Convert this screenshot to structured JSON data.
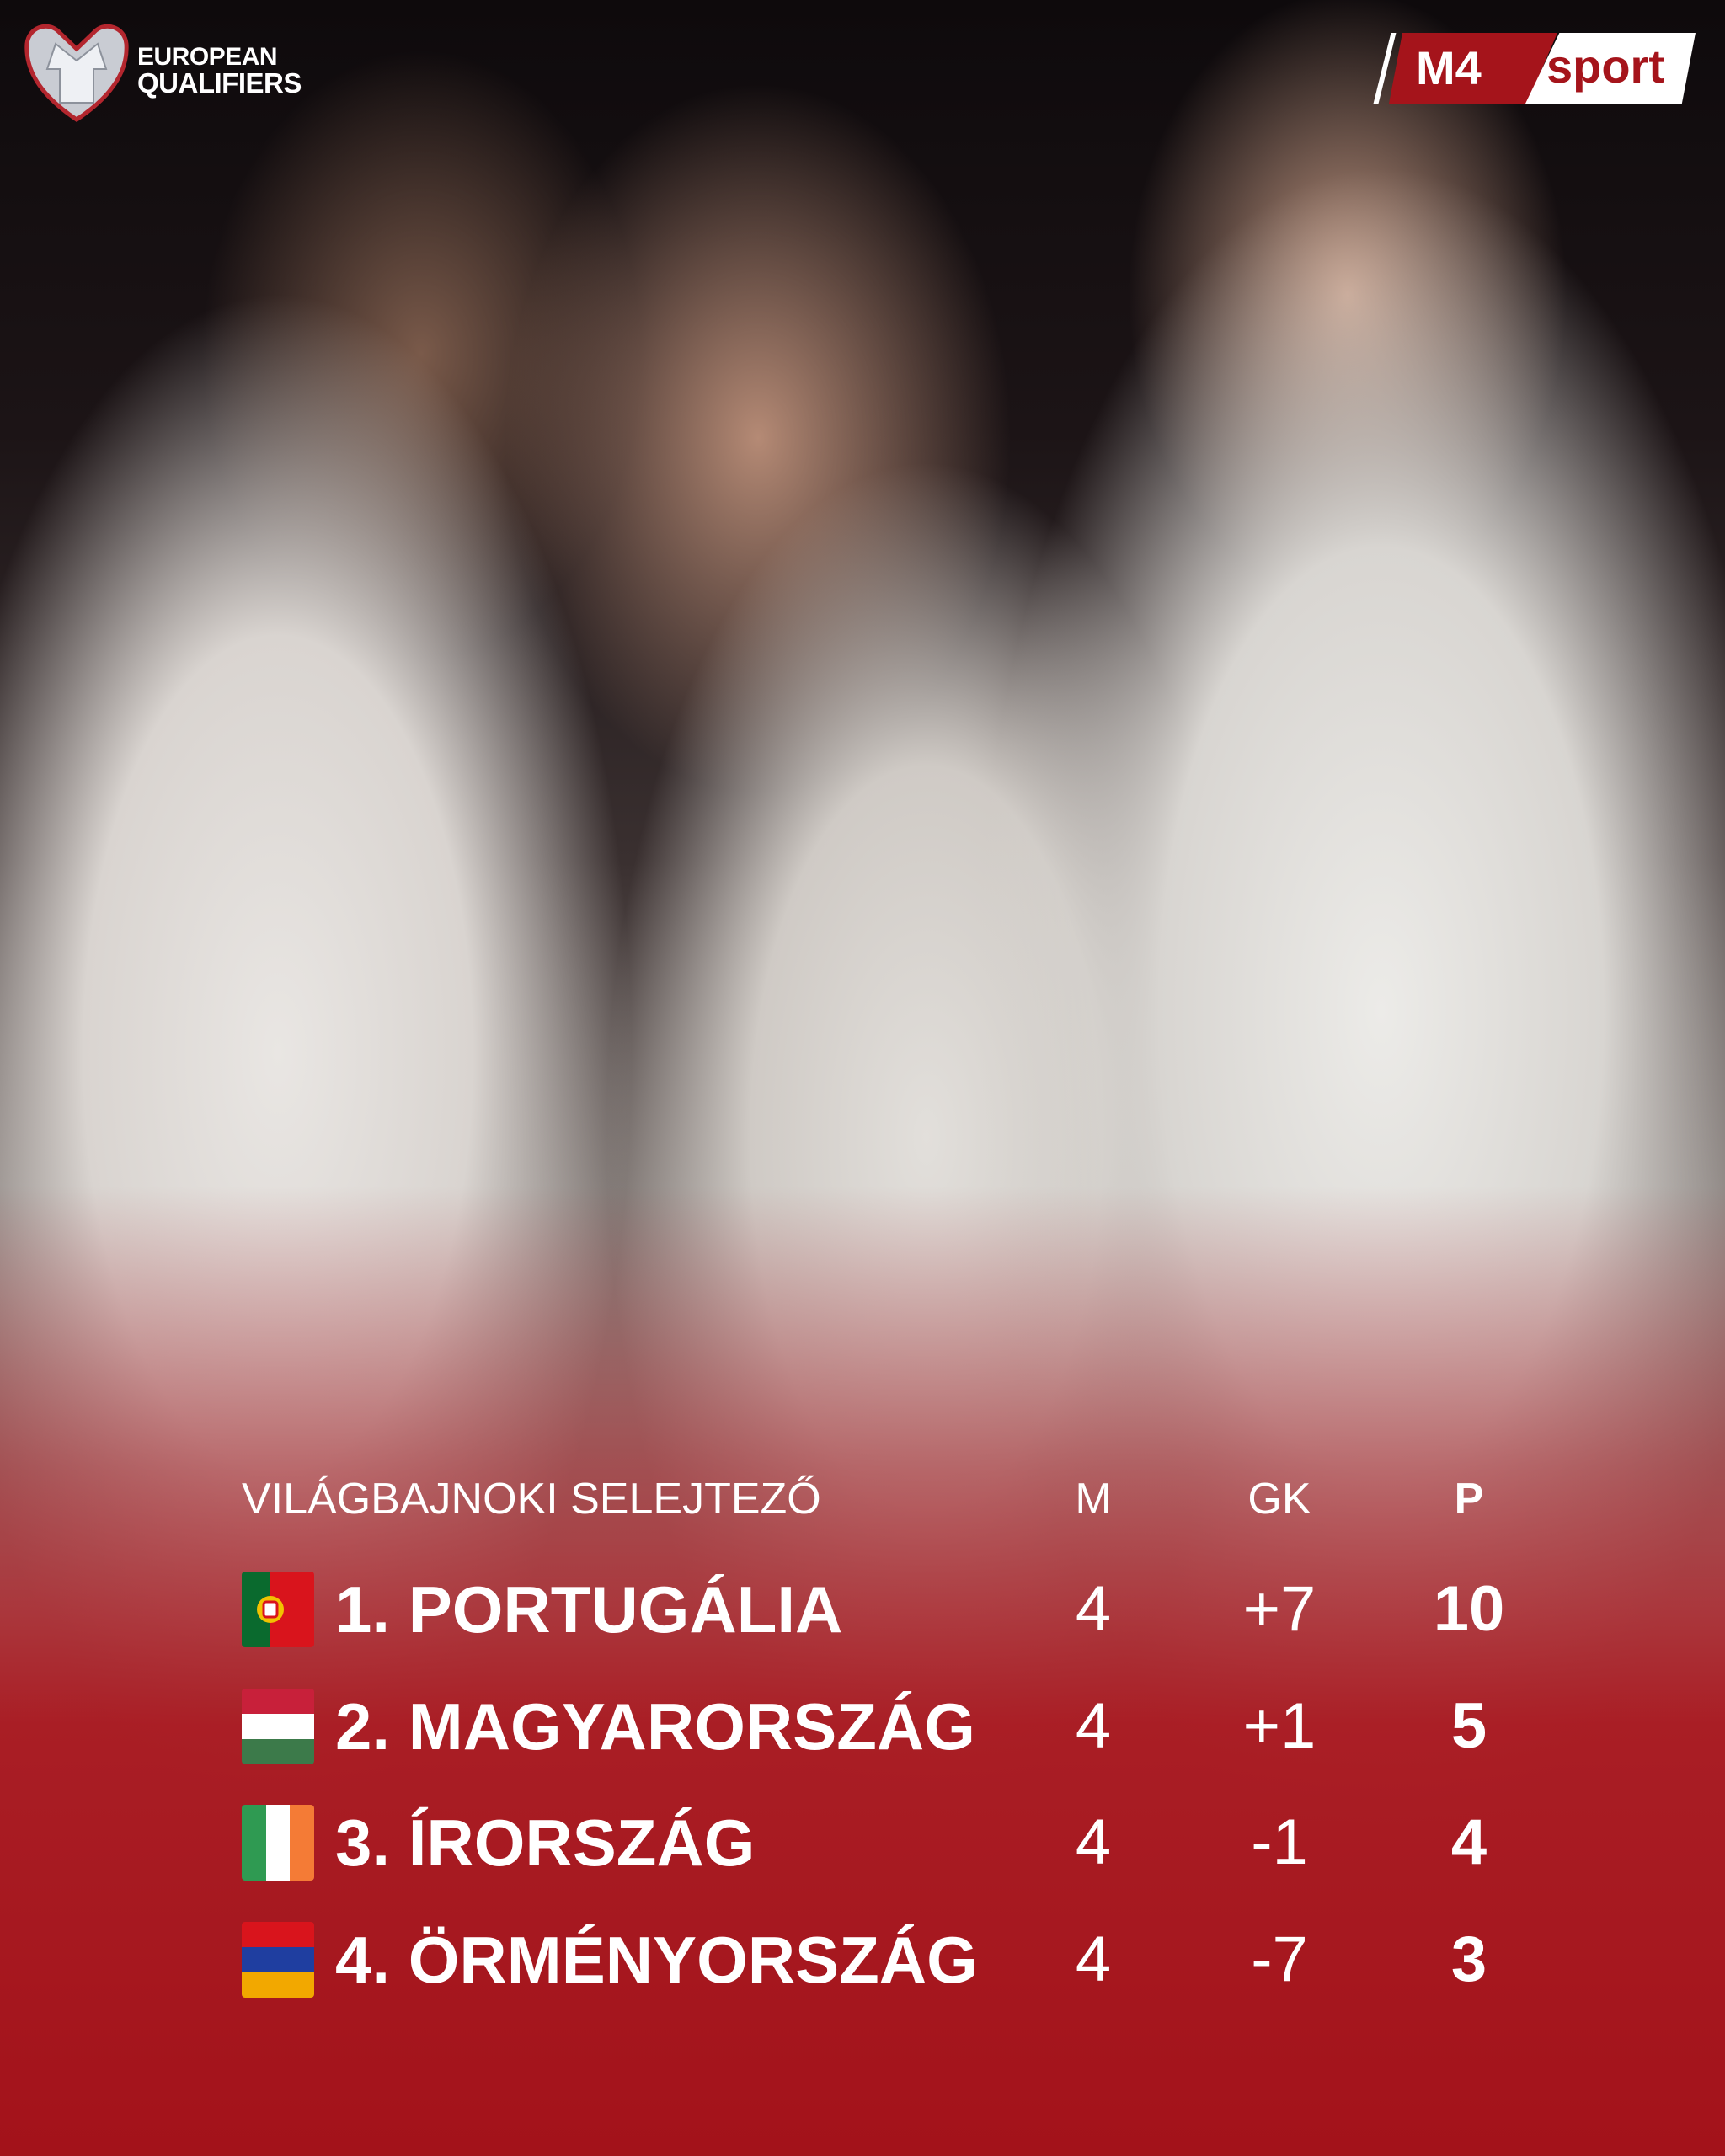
{
  "branding": {
    "left_logo_text": [
      "EUROPEAN",
      "QUALIFIERS"
    ],
    "right_logo_text": {
      "m4": "M4",
      "sport": "sport"
    },
    "accent_color": "#a5141b"
  },
  "table": {
    "title": "VILÁGBAJNOKI SELEJTEZŐ",
    "columns": [
      "M",
      "GK",
      "P"
    ],
    "rows": [
      {
        "name": "1. PORTUGÁLIA",
        "flag": "portugal-flag",
        "m": "4",
        "gk": "+7",
        "p": "10"
      },
      {
        "name": "2. MAGYARORSZÁG",
        "flag": "hungary-flag",
        "m": "4",
        "gk": "+1",
        "p": "5"
      },
      {
        "name": "3. ÍRORSZÁG",
        "flag": "ireland-flag",
        "m": "4",
        "gk": "-1",
        "p": "4"
      },
      {
        "name": "4. ÖRMÉNYORSZÁG",
        "flag": "armenia-flag",
        "m": "4",
        "gk": "-7",
        "p": "3"
      }
    ]
  }
}
